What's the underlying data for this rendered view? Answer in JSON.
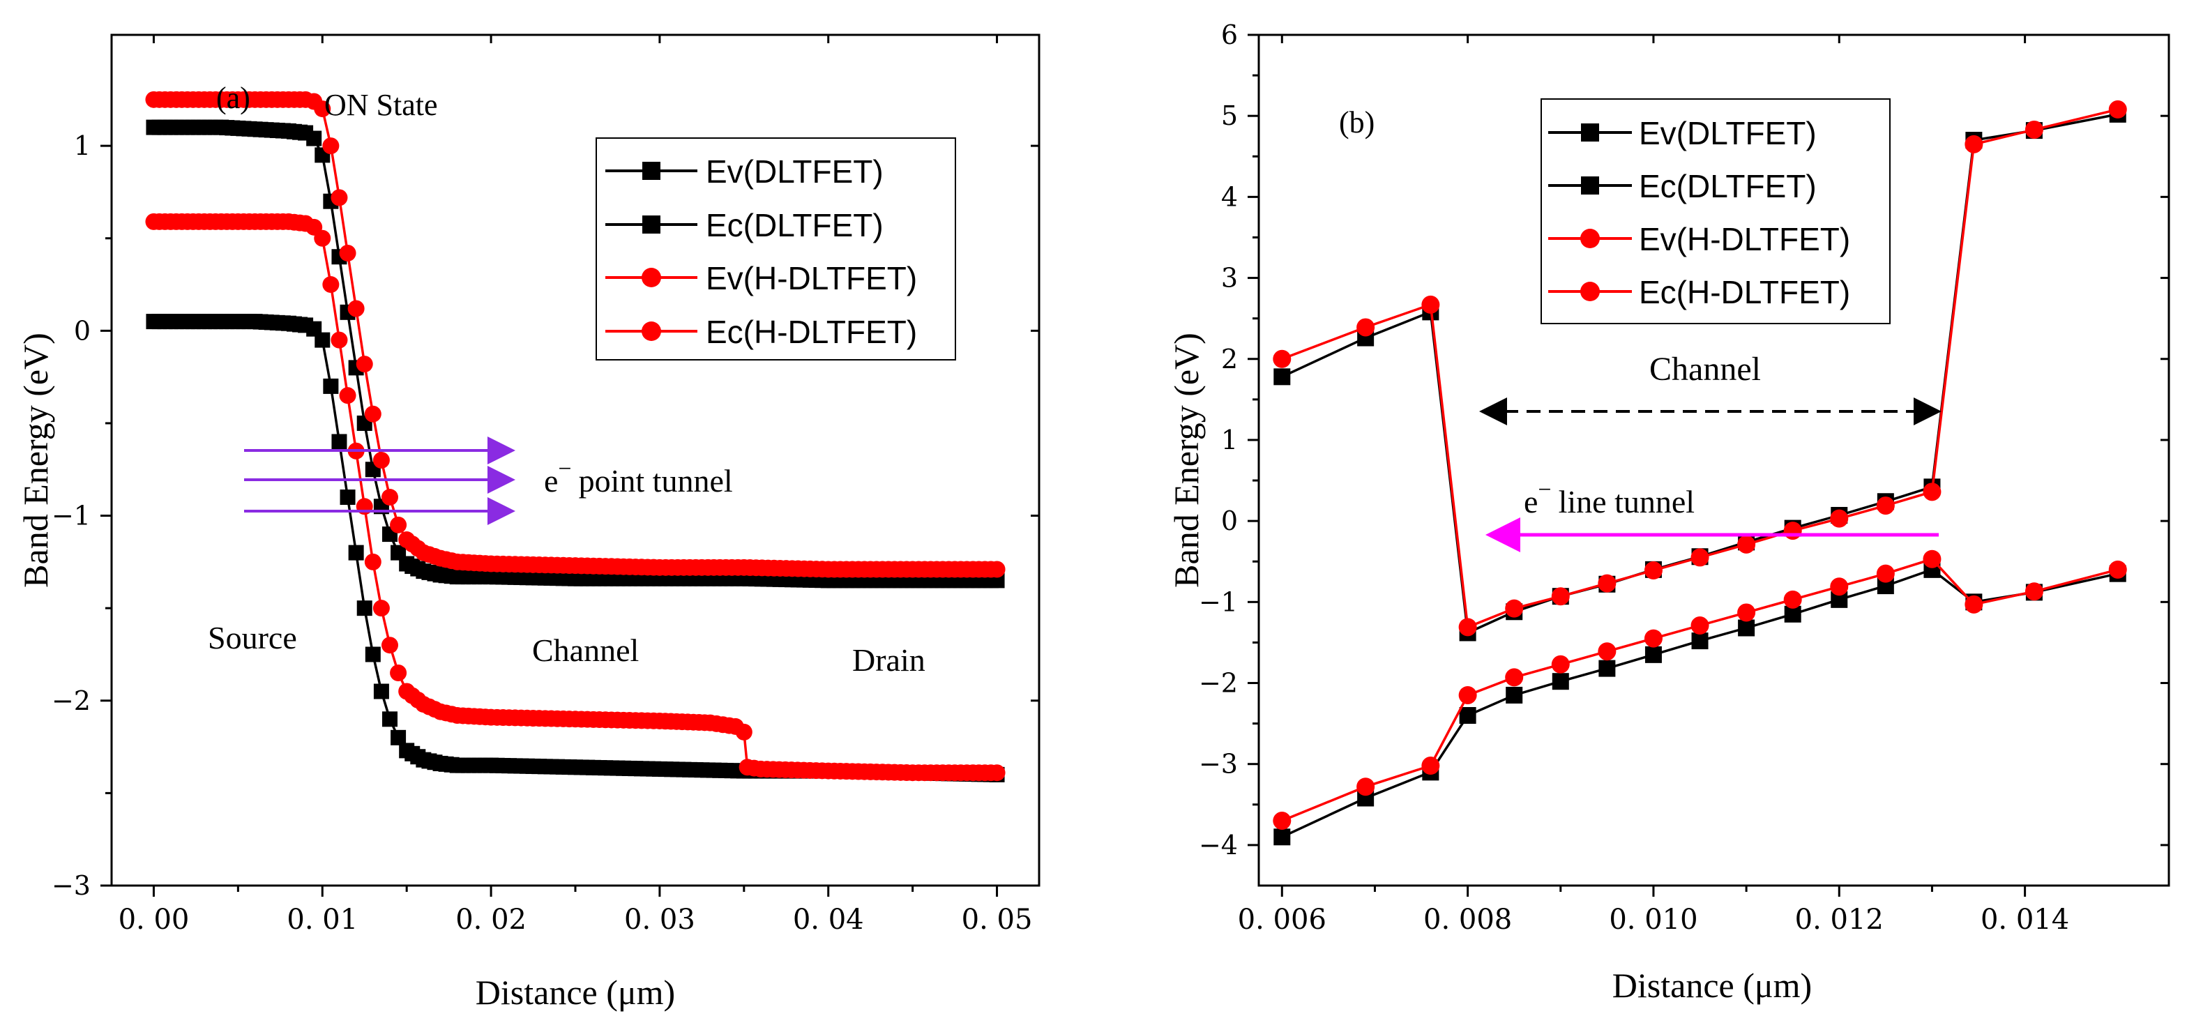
{
  "chart_data": [
    {
      "panel": "a",
      "type": "line",
      "panel_label": "(a)",
      "title": "ON State",
      "xlabel": "Distance (μm)",
      "ylabel": "Band Energy (eV)",
      "xlim": [
        -0.0025,
        0.0525
      ],
      "ylim": [
        -3,
        1.6
      ],
      "xticks": [
        0,
        0.01,
        0.02,
        0.03,
        0.04,
        0.05
      ],
      "xtick_labels": [
        "0. 00",
        "0. 01",
        "0. 02",
        "0. 03",
        "0. 04",
        "0. 05"
      ],
      "yticks": [
        -3,
        -2,
        -1,
        0,
        1
      ],
      "ytick_labels": [
        "−3",
        "−2",
        "−1",
        "0",
        "1"
      ],
      "legend_position": "top-right",
      "annotations": {
        "tunnel": "point tunnel",
        "electron": "e",
        "electron_sup": "−",
        "source": "Source",
        "channel": "Channel",
        "drain": "Drain"
      },
      "arrow_color": "#8a2be2",
      "series": [
        {
          "name": "Ev(DLTFET)",
          "color": "#000000",
          "marker": "square",
          "x": [
            0,
            0.002,
            0.004,
            0.006,
            0.008,
            0.009,
            0.0095,
            0.01,
            0.0105,
            0.011,
            0.0115,
            0.012,
            0.0125,
            0.013,
            0.0135,
            0.014,
            0.0145,
            0.015,
            0.016,
            0.017,
            0.018,
            0.02,
            0.025,
            0.03,
            0.035,
            0.04,
            0.045,
            0.05
          ],
          "y": [
            0.05,
            0.05,
            0.05,
            0.05,
            0.04,
            0.03,
            0.01,
            -0.05,
            -0.3,
            -0.6,
            -0.9,
            -1.2,
            -1.5,
            -1.75,
            -1.95,
            -2.1,
            -2.2,
            -2.27,
            -2.32,
            -2.34,
            -2.35,
            -2.35,
            -2.36,
            -2.37,
            -2.38,
            -2.38,
            -2.39,
            -2.4
          ]
        },
        {
          "name": "Ec(DLTFET)",
          "color": "#000000",
          "marker": "square",
          "x": [
            0,
            0.002,
            0.004,
            0.006,
            0.008,
            0.009,
            0.0095,
            0.01,
            0.0105,
            0.011,
            0.0115,
            0.012,
            0.0125,
            0.013,
            0.0135,
            0.014,
            0.0145,
            0.015,
            0.016,
            0.017,
            0.018,
            0.02,
            0.025,
            0.03,
            0.035,
            0.04,
            0.045,
            0.05
          ],
          "y": [
            1.1,
            1.1,
            1.1,
            1.09,
            1.08,
            1.07,
            1.04,
            0.95,
            0.7,
            0.4,
            0.1,
            -0.2,
            -0.5,
            -0.75,
            -0.95,
            -1.1,
            -1.2,
            -1.26,
            -1.3,
            -1.32,
            -1.33,
            -1.33,
            -1.34,
            -1.34,
            -1.34,
            -1.35,
            -1.35,
            -1.35
          ]
        },
        {
          "name": "Ev(H-DLTFET)",
          "color": "#ff0000",
          "marker": "circle",
          "x": [
            0,
            0.002,
            0.004,
            0.006,
            0.008,
            0.009,
            0.0095,
            0.01,
            0.0105,
            0.011,
            0.0115,
            0.012,
            0.0125,
            0.013,
            0.0135,
            0.014,
            0.0145,
            0.015,
            0.016,
            0.017,
            0.018,
            0.02,
            0.025,
            0.03,
            0.033,
            0.0345,
            0.035,
            0.0352,
            0.036,
            0.04,
            0.045,
            0.05
          ],
          "y": [
            0.59,
            0.59,
            0.59,
            0.59,
            0.59,
            0.58,
            0.56,
            0.5,
            0.25,
            -0.05,
            -0.35,
            -0.65,
            -0.95,
            -1.25,
            -1.5,
            -1.7,
            -1.85,
            -1.95,
            -2.02,
            -2.06,
            -2.08,
            -2.09,
            -2.1,
            -2.11,
            -2.12,
            -2.14,
            -2.17,
            -2.36,
            -2.37,
            -2.38,
            -2.39,
            -2.39
          ]
        },
        {
          "name": "Ec(H-DLTFET)",
          "color": "#ff0000",
          "marker": "circle",
          "x": [
            0,
            0.002,
            0.004,
            0.006,
            0.008,
            0.009,
            0.0095,
            0.01,
            0.0105,
            0.011,
            0.0115,
            0.012,
            0.0125,
            0.013,
            0.0135,
            0.014,
            0.0145,
            0.015,
            0.016,
            0.017,
            0.018,
            0.02,
            0.025,
            0.03,
            0.035,
            0.04,
            0.045,
            0.05
          ],
          "y": [
            1.25,
            1.25,
            1.25,
            1.25,
            1.25,
            1.25,
            1.24,
            1.2,
            1.0,
            0.72,
            0.42,
            0.12,
            -0.18,
            -0.45,
            -0.7,
            -0.9,
            -1.05,
            -1.13,
            -1.2,
            -1.23,
            -1.25,
            -1.26,
            -1.27,
            -1.28,
            -1.28,
            -1.29,
            -1.29,
            -1.29
          ]
        }
      ]
    },
    {
      "panel": "b",
      "type": "line",
      "panel_label": "(b)",
      "xlabel": "Distance (μm)",
      "ylabel": "Band Energy (eV)",
      "xlim": [
        0.00575,
        0.01555
      ],
      "ylim": [
        -4.5,
        6
      ],
      "xticks": [
        0.006,
        0.008,
        0.01,
        0.012,
        0.014
      ],
      "xtick_labels": [
        "0. 006",
        "0. 008",
        "0. 010",
        "0. 012",
        "0. 014"
      ],
      "yticks": [
        -4,
        -3,
        -2,
        -1,
        0,
        1,
        2,
        3,
        4,
        5,
        6
      ],
      "ytick_labels": [
        "−4",
        "−3",
        "−2",
        "−1",
        "0",
        "1",
        "2",
        "3",
        "4",
        "5",
        "6"
      ],
      "legend_position": "top-left",
      "annotations": {
        "channel": "Channel",
        "tunnel": "line tunnel",
        "electron": "e",
        "electron_sup": "−"
      },
      "arrow_color": "#ff00ff",
      "series": [
        {
          "name": "Ev(DLTFET)",
          "color": "#000000",
          "marker": "square",
          "x": [
            0.006,
            0.0069,
            0.0076,
            0.008,
            0.0085,
            0.009,
            0.0095,
            0.01,
            0.0105,
            0.011,
            0.0115,
            0.012,
            0.0125,
            0.013,
            0.01345,
            0.0141,
            0.015
          ],
          "y": [
            -3.9,
            -3.42,
            -3.1,
            -2.4,
            -2.15,
            -1.98,
            -1.82,
            -1.65,
            -1.48,
            -1.32,
            -1.15,
            -0.97,
            -0.8,
            -0.6,
            -1.0,
            -0.88,
            -0.65
          ]
        },
        {
          "name": "Ec(DLTFET)",
          "color": "#000000",
          "marker": "square",
          "x": [
            0.006,
            0.0069,
            0.0076,
            0.008,
            0.0085,
            0.009,
            0.0095,
            0.01,
            0.0105,
            0.011,
            0.0115,
            0.012,
            0.0125,
            0.013,
            0.01345,
            0.0141,
            0.015
          ],
          "y": [
            1.78,
            2.26,
            2.58,
            -1.38,
            -1.12,
            -0.93,
            -0.78,
            -0.6,
            -0.44,
            -0.26,
            -0.09,
            0.07,
            0.24,
            0.42,
            4.7,
            4.82,
            5.02
          ]
        },
        {
          "name": "Ev(H-DLTFET)",
          "color": "#ff0000",
          "marker": "circle",
          "x": [
            0.006,
            0.0069,
            0.0076,
            0.008,
            0.0085,
            0.009,
            0.0095,
            0.01,
            0.0105,
            0.011,
            0.0115,
            0.012,
            0.0125,
            0.013,
            0.01345,
            0.0141,
            0.015
          ],
          "y": [
            -3.7,
            -3.28,
            -3.02,
            -2.15,
            -1.93,
            -1.77,
            -1.61,
            -1.45,
            -1.29,
            -1.13,
            -0.97,
            -0.81,
            -0.65,
            -0.47,
            -1.03,
            -0.87,
            -0.6
          ]
        },
        {
          "name": "Ec(H-DLTFET)",
          "color": "#ff0000",
          "marker": "circle",
          "x": [
            0.006,
            0.0069,
            0.0076,
            0.008,
            0.0085,
            0.009,
            0.0095,
            0.01,
            0.0105,
            0.011,
            0.0115,
            0.012,
            0.0125,
            0.013,
            0.01345,
            0.0141,
            0.015
          ],
          "y": [
            2.0,
            2.39,
            2.67,
            -1.31,
            -1.08,
            -0.93,
            -0.77,
            -0.61,
            -0.45,
            -0.29,
            -0.12,
            0.03,
            0.19,
            0.36,
            4.65,
            4.83,
            5.08
          ]
        }
      ]
    }
  ]
}
